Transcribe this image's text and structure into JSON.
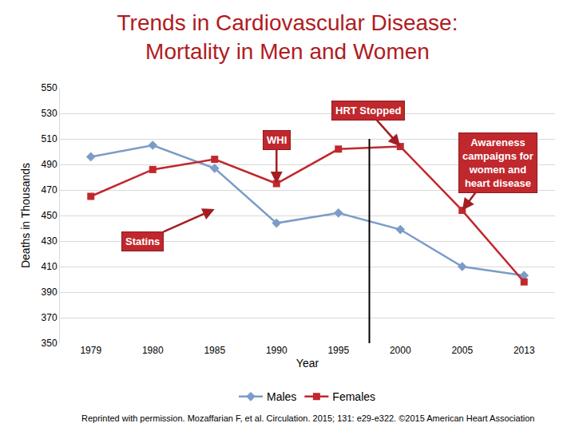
{
  "chart_data": {
    "type": "line",
    "title": "Trends in Cardiovascular Disease: Mortality in Men and Women",
    "x_label": "Year",
    "y_label": "Deaths in Thousands",
    "categories": [
      "1979",
      "1980",
      "1985",
      "1990",
      "1995",
      "2000",
      "2005",
      "2013"
    ],
    "series": [
      {
        "name": "Males",
        "color": "#7b9cc8",
        "marker": "diamond",
        "values": [
          496,
          505,
          487,
          444,
          452,
          439,
          410,
          403
        ]
      },
      {
        "name": "Females",
        "color": "#c0282d",
        "marker": "square",
        "values": [
          465,
          486,
          494,
          475,
          502,
          504,
          454,
          398
        ]
      }
    ],
    "ylim": [
      350,
      550
    ],
    "yticks": [
      350,
      370,
      390,
      410,
      430,
      450,
      470,
      490,
      510,
      530,
      550
    ],
    "grid": true,
    "legend": "bottom",
    "annotations": [
      {
        "text": "HRT Stopped",
        "x": "2000",
        "y": 504
      },
      {
        "text": "WHI",
        "x": "1990",
        "y": 475
      },
      {
        "text": "Awareness campaigns for women and heart disease",
        "x": "2005",
        "y": 454
      },
      {
        "text": "Statins",
        "x": "1985",
        "y": 455
      }
    ],
    "footer": "Reprinted with permission. Mozaffarian F, et al. Circulation. 2015; 131: e29-e322. ©2015 American Heart Association"
  }
}
